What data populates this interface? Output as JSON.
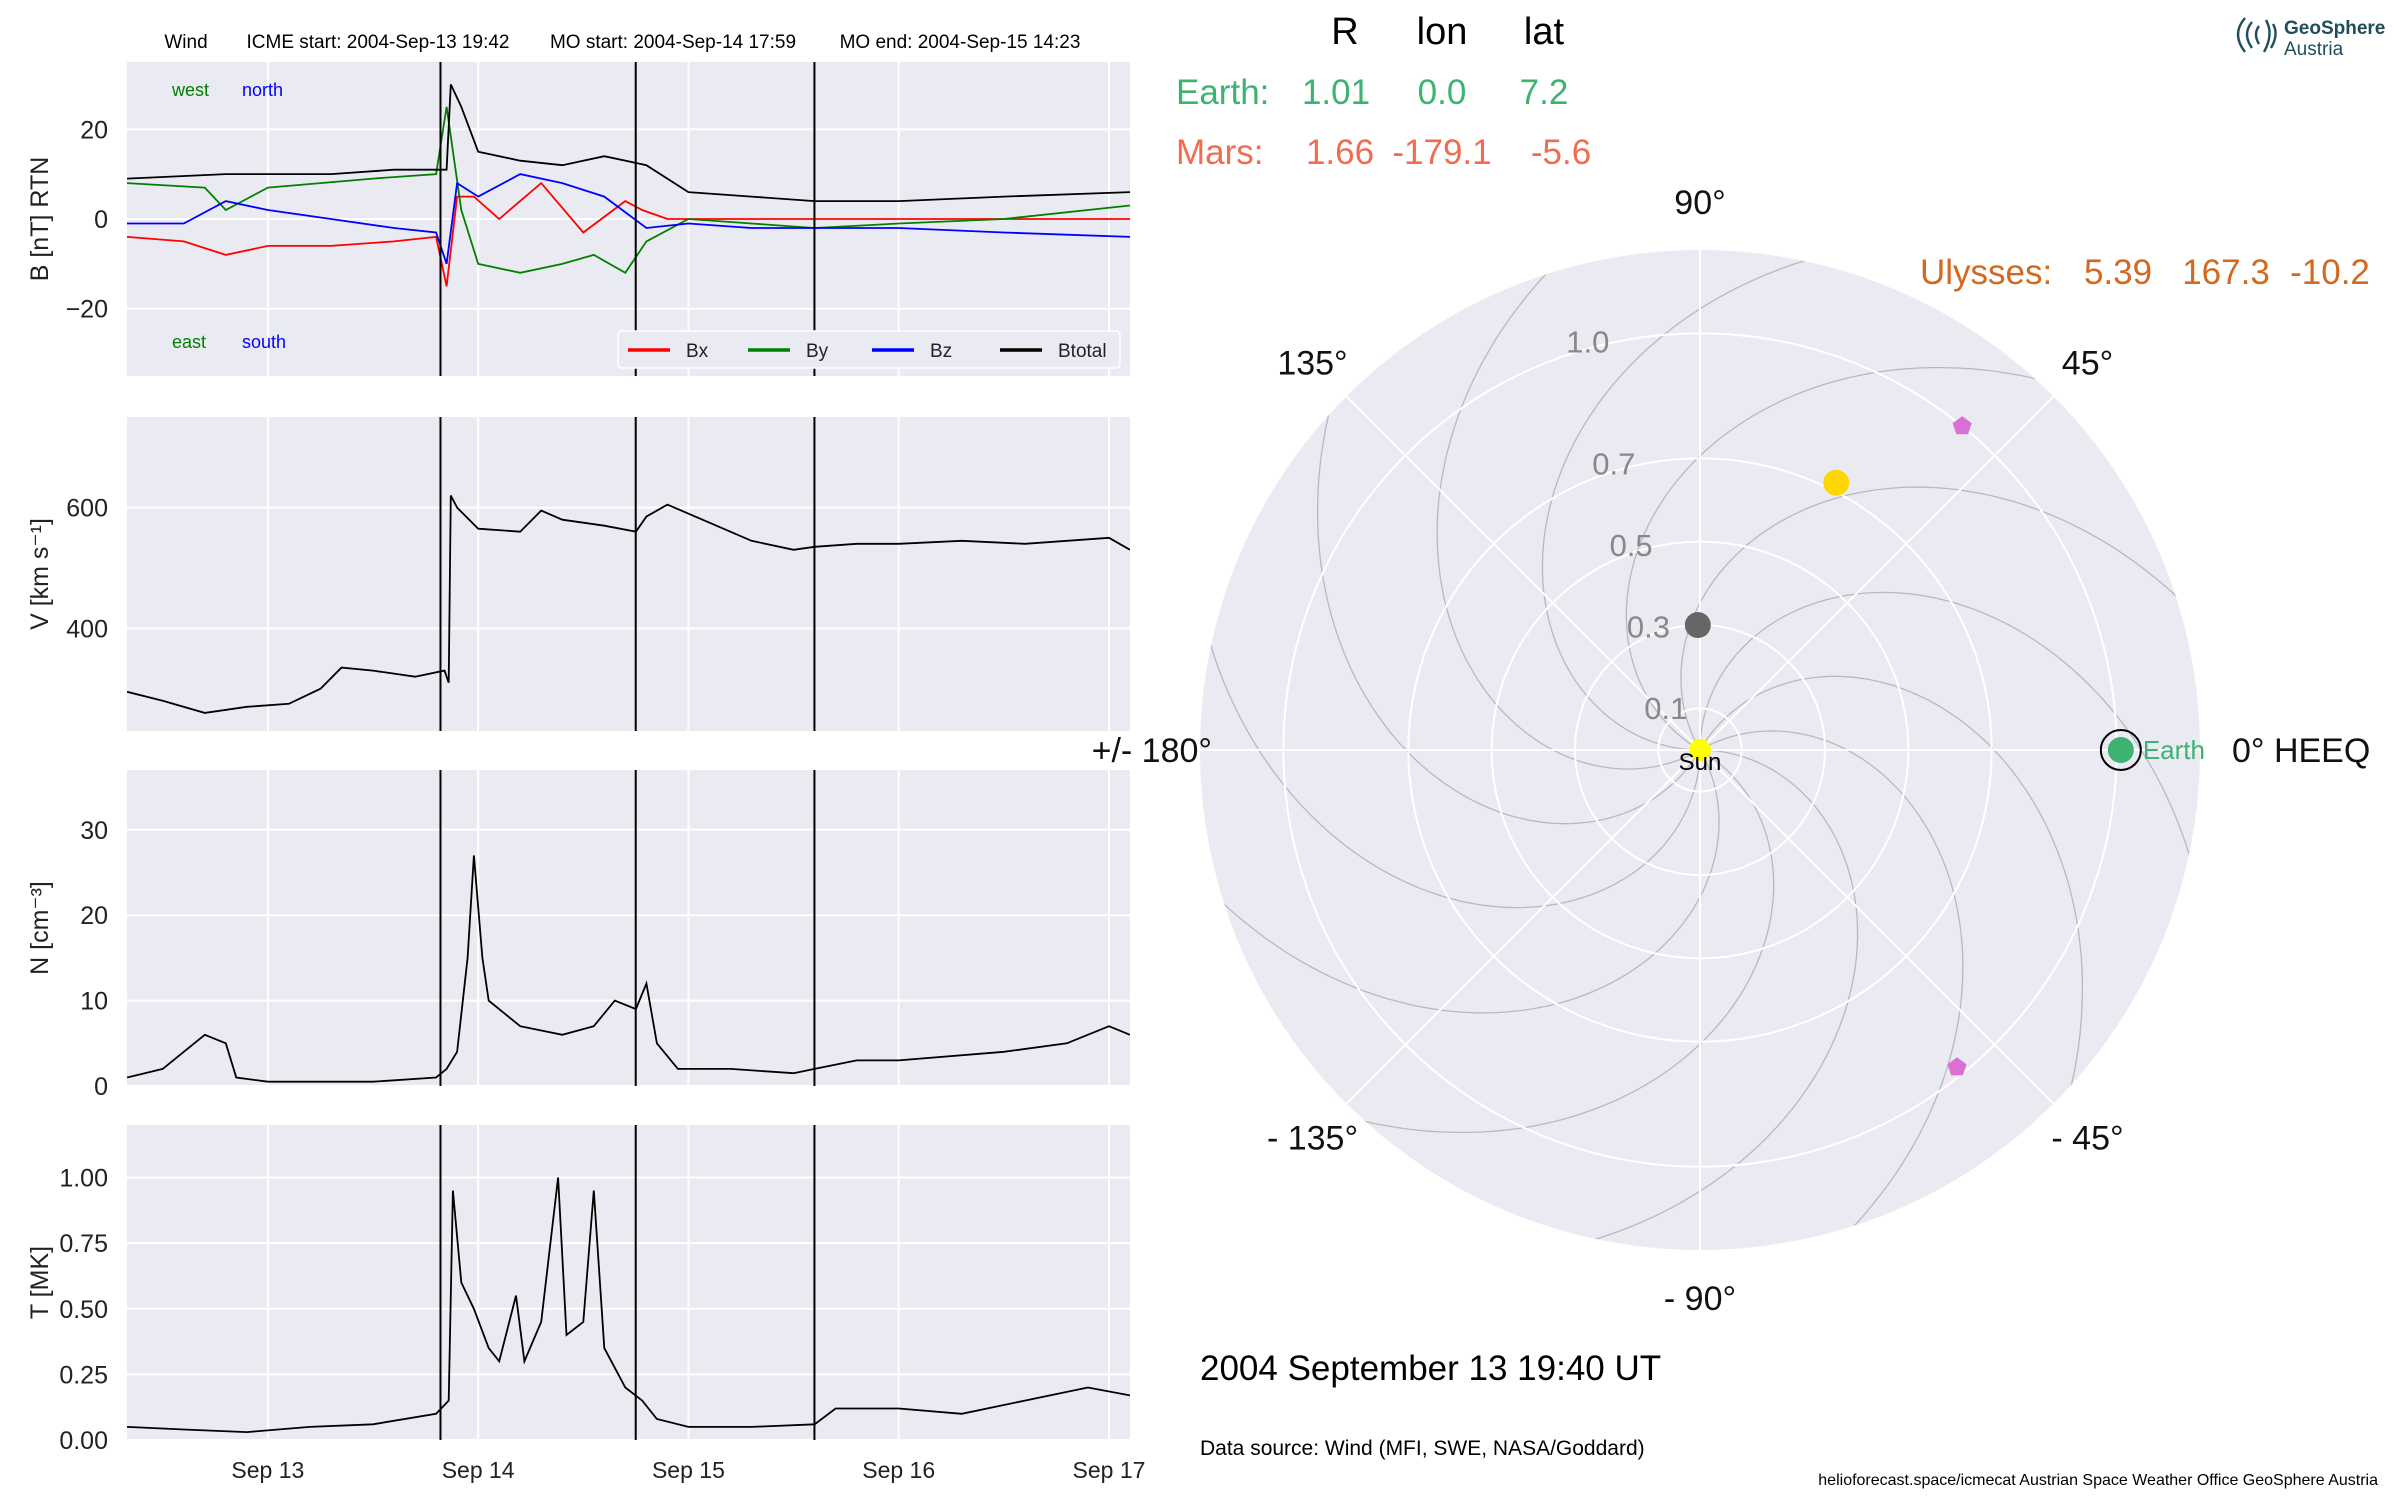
{
  "header": {
    "spacecraft": "Wind",
    "icme_start": "ICME start: 2004-Sep-13 19:42",
    "mo_start": "MO start: 2004-Sep-14 17:59",
    "mo_end": "MO end: 2004-Sep-15 14:23"
  },
  "logo": {
    "line1": "GeoSphere",
    "line2": "Austria",
    "color": "#1f4e5a"
  },
  "positions": {
    "columns": [
      "R",
      "lon",
      "lat"
    ],
    "rows": [
      {
        "name": "Earth:",
        "R": "1.01",
        "lon": "0.0",
        "lat": "7.2",
        "color": "#3cb371"
      },
      {
        "name": "Mars:",
        "R": "1.66",
        "lon": "-179.1",
        "lat": "-5.6",
        "color": "#f26b4f"
      },
      {
        "name": "Ulysses:",
        "R": "5.39",
        "lon": "167.3",
        "lat": "-10.2",
        "color": "#d2691e"
      }
    ]
  },
  "footer": {
    "datetime": "2004 September 13  19:40 UT",
    "source": "Data source: Wind (MFI, SWE, NASA/Goddard)",
    "credits": "helioforecast.space/icmecat   Austrian Space Weather Office   GeoSphere Austria"
  },
  "colors": {
    "panel_bg": "#eaeaf2",
    "grid": "#ffffff",
    "bx": "#ff0000",
    "by": "#008000",
    "bz": "#0000ff",
    "btotal": "#000000",
    "earth": "#3cb371",
    "sun": "#ffff00",
    "mercury": "#666666",
    "venus": "#ffd700",
    "stereo": "#da70d6"
  },
  "chart_data": [
    {
      "type": "line",
      "panel": "magnetic-field",
      "ylabel": "B [nT] RTN",
      "ylim": [
        -35,
        35
      ],
      "yticks": [
        20,
        0,
        -20
      ],
      "ytick_labels": [
        "20",
        "0",
        "−20"
      ],
      "xlim_days": [
        12.33,
        17.1
      ],
      "xticks": [
        "Sep 13",
        "Sep 14",
        "Sep 15",
        "Sep 16",
        "Sep 17"
      ],
      "event_lines": [
        "2004-09-13 19:42",
        "2004-09-14 17:59",
        "2004-09-15 14:23"
      ],
      "annotations": {
        "top_left": "west",
        "top_right": "north",
        "bottom_left": "east",
        "bottom_right": "south"
      },
      "legend_position": "lower-right",
      "series": [
        {
          "name": "Bx",
          "color": "#ff0000",
          "points": [
            [
              12.33,
              -4
            ],
            [
              12.6,
              -5
            ],
            [
              12.8,
              -8
            ],
            [
              13.0,
              -6
            ],
            [
              13.3,
              -6
            ],
            [
              13.6,
              -5
            ],
            [
              13.8,
              -4
            ],
            [
              13.85,
              -15
            ],
            [
              13.9,
              5
            ],
            [
              13.98,
              5
            ],
            [
              14.1,
              0
            ],
            [
              14.3,
              8
            ],
            [
              14.5,
              -3
            ],
            [
              14.7,
              4
            ],
            [
              14.78,
              2
            ],
            [
              14.9,
              0
            ],
            [
              15.1,
              0
            ],
            [
              15.3,
              0
            ],
            [
              15.6,
              0
            ],
            [
              16.0,
              0
            ],
            [
              16.5,
              0
            ],
            [
              17.1,
              0
            ]
          ]
        },
        {
          "name": "By",
          "color": "#008000",
          "points": [
            [
              12.33,
              8
            ],
            [
              12.7,
              7
            ],
            [
              12.8,
              2
            ],
            [
              13.0,
              7
            ],
            [
              13.5,
              9
            ],
            [
              13.8,
              10
            ],
            [
              13.85,
              25
            ],
            [
              13.92,
              2
            ],
            [
              14.0,
              -10
            ],
            [
              14.2,
              -12
            ],
            [
              14.4,
              -10
            ],
            [
              14.55,
              -8
            ],
            [
              14.7,
              -12
            ],
            [
              14.8,
              -5
            ],
            [
              15.0,
              0
            ],
            [
              15.3,
              -1
            ],
            [
              15.6,
              -2
            ],
            [
              16.0,
              -1
            ],
            [
              16.5,
              0
            ],
            [
              17.1,
              3
            ]
          ]
        },
        {
          "name": "Bz",
          "color": "#0000ff",
          "points": [
            [
              12.33,
              -1
            ],
            [
              12.6,
              -1
            ],
            [
              12.8,
              4
            ],
            [
              13.0,
              2
            ],
            [
              13.3,
              0
            ],
            [
              13.6,
              -2
            ],
            [
              13.8,
              -3
            ],
            [
              13.85,
              -10
            ],
            [
              13.9,
              8
            ],
            [
              14.0,
              5
            ],
            [
              14.2,
              10
            ],
            [
              14.4,
              8
            ],
            [
              14.6,
              5
            ],
            [
              14.8,
              -2
            ],
            [
              15.0,
              -1
            ],
            [
              15.3,
              -2
            ],
            [
              15.6,
              -2
            ],
            [
              16.0,
              -2
            ],
            [
              16.5,
              -3
            ],
            [
              17.1,
              -4
            ]
          ]
        },
        {
          "name": "Btotal",
          "color": "#000000",
          "points": [
            [
              12.33,
              9
            ],
            [
              12.8,
              10
            ],
            [
              13.3,
              10
            ],
            [
              13.6,
              11
            ],
            [
              13.85,
              11
            ],
            [
              13.87,
              30
            ],
            [
              13.92,
              25
            ],
            [
              14.0,
              15
            ],
            [
              14.2,
              13
            ],
            [
              14.4,
              12
            ],
            [
              14.6,
              14
            ],
            [
              14.8,
              12
            ],
            [
              15.0,
              6
            ],
            [
              15.3,
              5
            ],
            [
              15.6,
              4
            ],
            [
              16.0,
              4
            ],
            [
              16.5,
              5
            ],
            [
              17.1,
              6
            ]
          ]
        }
      ]
    },
    {
      "type": "line",
      "panel": "speed",
      "ylabel": "V [km s⁻¹]",
      "ylim": [
        230,
        750
      ],
      "yticks": [
        600,
        400
      ],
      "ytick_labels": [
        "600",
        "400"
      ],
      "xlim_days": [
        12.33,
        17.1
      ],
      "series": [
        {
          "name": "",
          "color": "#000000",
          "points": [
            [
              12.33,
              295
            ],
            [
              12.5,
              280
            ],
            [
              12.7,
              260
            ],
            [
              12.9,
              270
            ],
            [
              13.1,
              275
            ],
            [
              13.25,
              300
            ],
            [
              13.35,
              335
            ],
            [
              13.5,
              330
            ],
            [
              13.7,
              320
            ],
            [
              13.84,
              330
            ],
            [
              13.86,
              310
            ],
            [
              13.87,
              620
            ],
            [
              13.9,
              600
            ],
            [
              14.0,
              565
            ],
            [
              14.2,
              560
            ],
            [
              14.3,
              595
            ],
            [
              14.4,
              580
            ],
            [
              14.6,
              570
            ],
            [
              14.75,
              560
            ],
            [
              14.8,
              585
            ],
            [
              14.9,
              605
            ],
            [
              15.1,
              575
            ],
            [
              15.3,
              545
            ],
            [
              15.5,
              530
            ],
            [
              15.6,
              535
            ],
            [
              15.8,
              540
            ],
            [
              16.0,
              540
            ],
            [
              16.3,
              545
            ],
            [
              16.6,
              540
            ],
            [
              17.0,
              550
            ],
            [
              17.1,
              530
            ]
          ]
        }
      ]
    },
    {
      "type": "line",
      "panel": "density",
      "ylabel": "N [cm⁻³]",
      "ylim": [
        0,
        37
      ],
      "yticks": [
        30,
        20,
        10,
        0
      ],
      "ytick_labels": [
        "30",
        "20",
        "10",
        "0"
      ],
      "xlim_days": [
        12.33,
        17.1
      ],
      "series": [
        {
          "name": "",
          "color": "#000000",
          "points": [
            [
              12.33,
              1
            ],
            [
              12.5,
              2
            ],
            [
              12.6,
              4
            ],
            [
              12.7,
              6
            ],
            [
              12.8,
              5
            ],
            [
              12.85,
              1
            ],
            [
              13.0,
              0.5
            ],
            [
              13.5,
              0.5
            ],
            [
              13.8,
              1
            ],
            [
              13.85,
              2
            ],
            [
              13.9,
              4
            ],
            [
              13.95,
              15
            ],
            [
              13.98,
              27
            ],
            [
              14.02,
              15
            ],
            [
              14.05,
              10
            ],
            [
              14.2,
              7
            ],
            [
              14.4,
              6
            ],
            [
              14.55,
              7
            ],
            [
              14.65,
              10
            ],
            [
              14.75,
              9
            ],
            [
              14.8,
              12
            ],
            [
              14.85,
              5
            ],
            [
              14.95,
              2
            ],
            [
              15.2,
              2
            ],
            [
              15.5,
              1.5
            ],
            [
              15.6,
              2
            ],
            [
              15.8,
              3
            ],
            [
              16.0,
              3
            ],
            [
              16.5,
              4
            ],
            [
              16.8,
              5
            ],
            [
              17.0,
              7
            ],
            [
              17.1,
              6
            ]
          ]
        }
      ]
    },
    {
      "type": "line",
      "panel": "temperature",
      "ylabel": "T [MK]",
      "ylim": [
        0,
        1.2
      ],
      "yticks": [
        1.0,
        0.75,
        0.5,
        0.25,
        0.0
      ],
      "ytick_labels": [
        "1.00",
        "0.75",
        "0.50",
        "0.25",
        "0.00"
      ],
      "xlim_days": [
        12.33,
        17.1
      ],
      "series": [
        {
          "name": "",
          "color": "#000000",
          "points": [
            [
              12.33,
              0.05
            ],
            [
              12.6,
              0.04
            ],
            [
              12.9,
              0.03
            ],
            [
              13.2,
              0.05
            ],
            [
              13.5,
              0.06
            ],
            [
              13.8,
              0.1
            ],
            [
              13.86,
              0.15
            ],
            [
              13.88,
              0.95
            ],
            [
              13.92,
              0.6
            ],
            [
              13.98,
              0.5
            ],
            [
              14.05,
              0.35
            ],
            [
              14.1,
              0.3
            ],
            [
              14.18,
              0.55
            ],
            [
              14.22,
              0.3
            ],
            [
              14.3,
              0.45
            ],
            [
              14.38,
              1.0
            ],
            [
              14.42,
              0.4
            ],
            [
              14.5,
              0.45
            ],
            [
              14.55,
              0.95
            ],
            [
              14.6,
              0.35
            ],
            [
              14.7,
              0.2
            ],
            [
              14.78,
              0.15
            ],
            [
              14.85,
              0.08
            ],
            [
              15.0,
              0.05
            ],
            [
              15.3,
              0.05
            ],
            [
              15.6,
              0.06
            ],
            [
              15.7,
              0.12
            ],
            [
              16.0,
              0.12
            ],
            [
              16.3,
              0.1
            ],
            [
              16.6,
              0.15
            ],
            [
              16.9,
              0.2
            ],
            [
              17.1,
              0.17
            ]
          ]
        }
      ]
    },
    {
      "type": "scatter",
      "panel": "polar-position-plot",
      "angle_labels": [
        {
          "deg": 90,
          "text": "90°"
        },
        {
          "deg": 45,
          "text": "45°"
        },
        {
          "deg": 0,
          "text": "0° HEEQ"
        },
        {
          "deg": -45,
          "text": "- 45°"
        },
        {
          "deg": -90,
          "text": "- 90°"
        },
        {
          "deg": -135,
          "text": "- 135°"
        },
        {
          "deg": 180,
          "text": "+/- 180°"
        },
        {
          "deg": 135,
          "text": "135°"
        }
      ],
      "radial_ticks": [
        0.1,
        0.3,
        0.5,
        0.7,
        1.0
      ],
      "radial_tick_labels": [
        "0.1",
        "0.3",
        "0.5",
        "0.7",
        "1.0"
      ],
      "r_max": 1.2,
      "bodies": [
        {
          "label": "Sun",
          "r": 0.0,
          "lon": 0,
          "color": "#ffff00"
        },
        {
          "label": "",
          "r": 0.3,
          "lon": 91,
          "color": "#666666"
        },
        {
          "label": "",
          "r": 0.72,
          "lon": 63,
          "color": "#ffd700"
        },
        {
          "label": "Earth",
          "r": 1.01,
          "lon": 0,
          "color": "#3cb371"
        },
        {
          "label": "",
          "r": 1.0,
          "lon": 51,
          "color": "#da70d6"
        },
        {
          "label": "",
          "r": 0.98,
          "lon": -51,
          "color": "#da70d6"
        }
      ]
    }
  ]
}
